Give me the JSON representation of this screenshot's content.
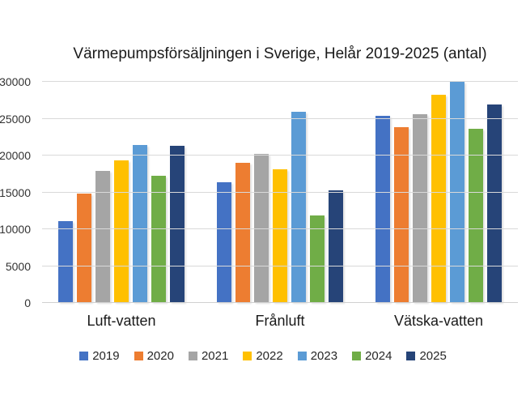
{
  "chart_data": {
    "type": "bar",
    "title": "Värmepumpsförsäljningen i Sverige, Helår 2019-2025 (antal)",
    "categories": [
      "Luft-vatten",
      "Frånluft",
      "Vätska-vatten"
    ],
    "series": [
      {
        "name": "2019",
        "color": "#4472C4",
        "values": [
          11000,
          16300,
          25300
        ]
      },
      {
        "name": "2020",
        "color": "#ED7D31",
        "values": [
          14700,
          18900,
          23700
        ]
      },
      {
        "name": "2021",
        "color": "#A5A5A5",
        "values": [
          17800,
          20100,
          25500
        ]
      },
      {
        "name": "2022",
        "color": "#FFC000",
        "values": [
          19200,
          18000,
          28100
        ]
      },
      {
        "name": "2023",
        "color": "#5B9BD5",
        "values": [
          21300,
          25800,
          29900
        ]
      },
      {
        "name": "2024",
        "color": "#70AD47",
        "values": [
          17100,
          11800,
          23500
        ]
      },
      {
        "name": "2025",
        "color": "#264478",
        "values": [
          21200,
          15200,
          26800
        ]
      }
    ],
    "ylim": [
      0,
      30000
    ],
    "yticks": [
      0,
      5000,
      10000,
      15000,
      20000,
      25000,
      30000
    ],
    "grid": true,
    "legend_position": "bottom",
    "xlabel": "",
    "ylabel": ""
  },
  "colors": {
    "gridline": "#D9D9D9",
    "axis": "#D0D0D0",
    "title_text": "#1A1A1A",
    "tick_text": "#333333",
    "legend_text": "#262626",
    "background": "#FFFFFF"
  }
}
